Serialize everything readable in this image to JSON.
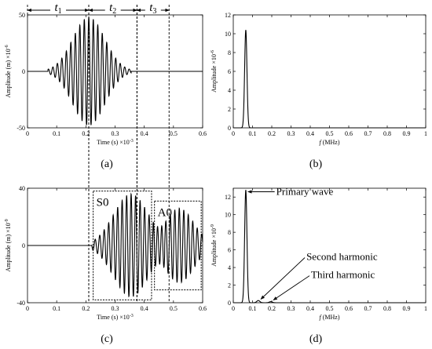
{
  "chart_data": [
    {
      "id": "a",
      "type": "line",
      "caption": "(a)",
      "xlabel": "Time (s) ×10",
      "xlabel_exp": "-3",
      "ylabel": "Amplitude (m) ×10",
      "ylabel_exp": "-6",
      "xlim": [
        0,
        0.6
      ],
      "ylim": [
        -50,
        50
      ],
      "xticks": [
        "0",
        "0.1",
        "0.2",
        "0.3",
        "0.4",
        "0.5",
        "0.6"
      ],
      "yticks": [
        "-50",
        "0",
        "50"
      ],
      "ytick_values": [
        -50,
        0,
        50
      ],
      "signal": {
        "center": 0.21,
        "sigma": 0.055,
        "amplitude": 48,
        "cycles_per_ms": 65,
        "start": 0.07,
        "end": 0.355
      },
      "time_windows": [
        {
          "label": "t",
          "sub": "1",
          "from": 0.0,
          "to": 0.21
        },
        {
          "label": "t",
          "sub": "2",
          "from": 0.21,
          "to": 0.375
        },
        {
          "label": "t",
          "sub": "3",
          "from": 0.375,
          "to": 0.485
        }
      ]
    },
    {
      "id": "b",
      "type": "line",
      "caption": "(b)",
      "xlabel": "f (MHz)",
      "ylabel": "Amplitude ×10",
      "ylabel_exp": "-6",
      "xlim": [
        0,
        1.0
      ],
      "ylim": [
        0,
        12
      ],
      "xticks": [
        "0",
        "0.1",
        "0.2",
        "0.3",
        "0.4",
        "0.5",
        "0.6",
        "0.7",
        "0.8",
        "0.9",
        "1"
      ],
      "yticks": [
        "0",
        "2",
        "4",
        "6",
        "8",
        "10",
        "12"
      ],
      "ytick_values": [
        0,
        2,
        4,
        6,
        8,
        10,
        12
      ],
      "peaks": [
        {
          "x": 0.065,
          "y": 10.4,
          "width": 0.006
        }
      ]
    },
    {
      "id": "c",
      "type": "line",
      "caption": "(c)",
      "xlabel": "Time (s) ×10",
      "xlabel_exp": "-3",
      "ylabel": "Amplitude (m) ×10",
      "ylabel_exp": "-9",
      "xlim": [
        0,
        0.6
      ],
      "ylim": [
        -40,
        40
      ],
      "xticks": [
        "0",
        "0.1",
        "0.2",
        "0.3",
        "0.4",
        "0.5",
        "0.6"
      ],
      "yticks": [
        "-40",
        "0",
        "40"
      ],
      "ytick_values": [
        -40,
        0,
        40
      ],
      "packets": [
        {
          "center": 0.355,
          "sigma": 0.06,
          "amplitude": 36,
          "cycles_per_ms": 65,
          "start": 0.22,
          "end": 0.47
        },
        {
          "center": 0.52,
          "sigma": 0.05,
          "amplitude": 26,
          "cycles_per_ms": 65,
          "start": 0.43,
          "end": 0.6
        }
      ],
      "modes": [
        {
          "label": "S0",
          "x_from": 0.225,
          "x_to": 0.425,
          "y_from": -38,
          "y_to": 38
        },
        {
          "label": "A0",
          "x_from": 0.435,
          "x_to": 0.595,
          "y_from": -31,
          "y_to": 31
        }
      ]
    },
    {
      "id": "d",
      "type": "line",
      "caption": "(d)",
      "xlabel": "f (MHz)",
      "ylabel": "Amplitude ×10",
      "ylabel_exp": "-9",
      "xlim": [
        0,
        1.0
      ],
      "ylim": [
        0,
        13
      ],
      "xticks": [
        "0",
        "0.1",
        "0.2",
        "0.3",
        "0.4",
        "0.5",
        "0.6",
        "0.7",
        "0.8",
        "0.9",
        "1"
      ],
      "yticks": [
        "0",
        "2",
        "4",
        "6",
        "8",
        "10",
        "12"
      ],
      "ytick_values": [
        0,
        2,
        4,
        6,
        8,
        10,
        12
      ],
      "peaks": [
        {
          "x": 0.065,
          "y": 12.8,
          "width": 0.006
        },
        {
          "x": 0.13,
          "y": 0.25,
          "width": 0.008
        },
        {
          "x": 0.195,
          "y": 0.12,
          "width": 0.008
        }
      ],
      "annotations": [
        {
          "text": "Primary wave",
          "target_x": 0.068,
          "target_y": 12.6
        },
        {
          "text": "Second harmonic",
          "target_x": 0.135,
          "target_y": 0.4
        },
        {
          "text": "Third harmonic",
          "target_x": 0.2,
          "target_y": 0.3
        }
      ]
    }
  ]
}
